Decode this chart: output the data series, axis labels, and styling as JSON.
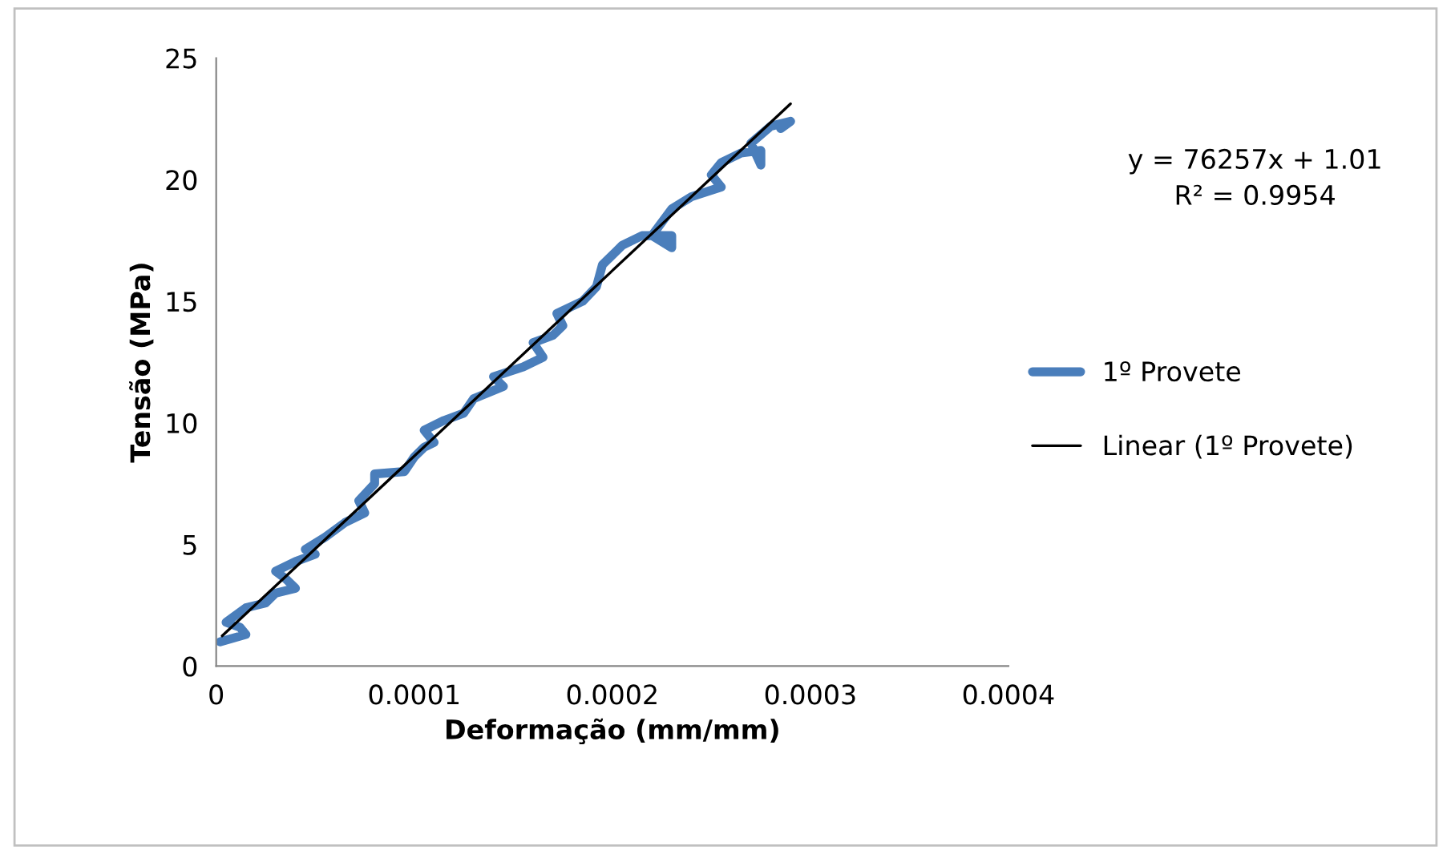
{
  "chart_data": {
    "type": "line",
    "xlabel": "Deformação (mm/mm)",
    "ylabel": "Tensão (MPa)",
    "xlim": [
      0,
      0.0004
    ],
    "ylim": [
      0,
      25
    ],
    "xticks": [
      0,
      {
        "value": 0.0001,
        "label": "0.0001"
      },
      {
        "value": 0.0002,
        "label": "0.0002"
      },
      {
        "value": 0.0003,
        "label": "0.0003"
      },
      {
        "value": 0.0004,
        "label": "0.0004"
      }
    ],
    "yticks": [
      0,
      5,
      10,
      15,
      20,
      25
    ],
    "grid": false,
    "legend": "right",
    "marker": "none",
    "annotations": [
      "y = 76257x + 1.01\nR² = 0.9954"
    ],
    "series": [
      {
        "name": "1º Provete",
        "color": "#4a7ebb",
        "line_style": "solid",
        "x": [
          2e-06,
          1.5e-05,
          1.2e-05,
          5e-06,
          1.5e-05,
          2.5e-05,
          3e-05,
          4e-05,
          3.5e-05,
          3e-05,
          4e-05,
          5e-05,
          4.5e-05,
          5.5e-05,
          6.5e-05,
          7.5e-05,
          7.2e-05,
          8e-05,
          8e-05,
          9.5e-05,
          0.0001,
          0.000105,
          0.00011,
          0.000105,
          0.000115,
          0.000125,
          0.00013,
          0.000145,
          0.00014,
          0.000155,
          0.000165,
          0.00016,
          0.00017,
          0.000175,
          0.000172,
          0.000185,
          0.000192,
          0.000195,
          0.000205,
          0.000215,
          0.00023,
          0.00023,
          0.00022,
          0.00023,
          0.00024,
          0.000255,
          0.00025,
          0.000255,
          0.000265,
          0.000275,
          0.000275,
          0.00027,
          0.00028,
          0.00029,
          0.000285
        ],
        "values": [
          1.0,
          1.3,
          1.6,
          1.8,
          2.4,
          2.6,
          3.0,
          3.2,
          3.6,
          3.9,
          4.3,
          4.6,
          4.8,
          5.3,
          5.9,
          6.3,
          6.8,
          7.5,
          7.9,
          8.0,
          8.6,
          9.0,
          9.2,
          9.7,
          10.1,
          10.4,
          11.0,
          11.5,
          11.9,
          12.3,
          12.7,
          13.3,
          13.6,
          14.0,
          14.5,
          15.0,
          15.6,
          16.5,
          17.3,
          17.7,
          17.7,
          17.2,
          17.7,
          18.8,
          19.3,
          19.7,
          20.2,
          20.7,
          21.1,
          21.2,
          20.6,
          21.5,
          22.2,
          22.4,
          22.1
        ]
      },
      {
        "name": "Linear (1º Provete)",
        "color": "#000000",
        "line_style": "solid",
        "x": [
          3e-06,
          0.00029
        ],
        "values": [
          1.24,
          23.12
        ]
      }
    ]
  }
}
